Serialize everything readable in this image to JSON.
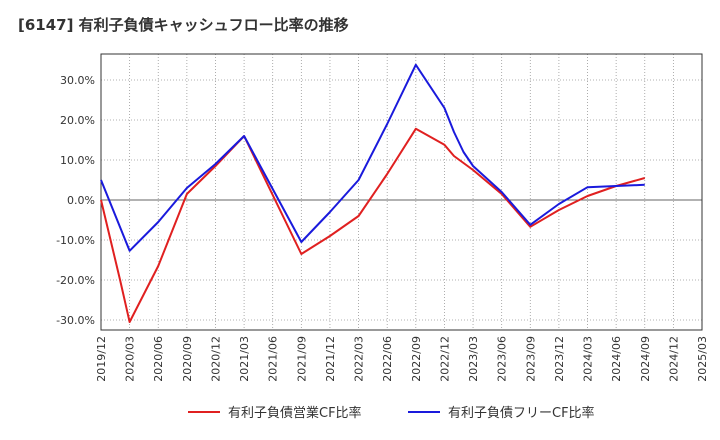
{
  "chart_data": {
    "type": "line",
    "title": "[6147]  有利子負債キャッシュフロー比率の推移",
    "xlabel": "",
    "ylabel": "",
    "x_ticks": [
      "2019/12",
      "2020/03",
      "2020/06",
      "2020/09",
      "2020/12",
      "2021/03",
      "2021/06",
      "2021/09",
      "2021/12",
      "2022/03",
      "2022/06",
      "2022/09",
      "2022/12",
      "2023/03",
      "2023/06",
      "2023/09",
      "2023/12",
      "2024/03",
      "2024/06",
      "2024/09",
      "2024/12",
      "2025/03"
    ],
    "y_ticks": [
      30,
      20,
      10,
      0,
      -10,
      -20,
      -30
    ],
    "y_tick_labels": [
      "30.0%",
      "20.0%",
      "10.0%",
      "0.0%",
      "-10.0%",
      "-20.0%",
      "-30.0%"
    ],
    "ylim": [
      -32.5,
      36.5
    ],
    "grid": true,
    "legend_position": "bottom",
    "series": [
      {
        "name": "有利子負債営業CF比率",
        "color": "#e02020",
        "points": [
          [
            "2019/12",
            0.0
          ],
          [
            "2020/01",
            -10.0
          ],
          [
            "2020/02",
            -20.0
          ],
          [
            "2020/03",
            -30.5
          ],
          [
            "2020/06",
            -16.5
          ],
          [
            "2020/09",
            1.5
          ],
          [
            "2020/12",
            8.5
          ],
          [
            "2021/03",
            16.0
          ],
          [
            "2021/09",
            -13.5
          ],
          [
            "2021/12",
            -9.0
          ],
          [
            "2022/03",
            -4.0
          ],
          [
            "2022/06",
            6.5
          ],
          [
            "2022/09",
            17.8
          ],
          [
            "2022/12",
            13.8
          ],
          [
            "2023/01",
            11.0
          ],
          [
            "2023/03",
            7.5
          ],
          [
            "2023/06",
            1.5
          ],
          [
            "2023/09",
            -6.7
          ],
          [
            "2023/12",
            -2.5
          ],
          [
            "2024/03",
            1.0
          ],
          [
            "2024/06",
            3.5
          ],
          [
            "2024/09",
            5.5
          ]
        ]
      },
      {
        "name": "有利子負債フリーCF比率",
        "color": "#1a1adc",
        "points": [
          [
            "2019/12",
            5.0
          ],
          [
            "2020/03",
            -12.7
          ],
          [
            "2020/06",
            -5.5
          ],
          [
            "2020/09",
            3.0
          ],
          [
            "2020/12",
            9.0
          ],
          [
            "2021/03",
            16.0
          ],
          [
            "2021/09",
            -10.5
          ],
          [
            "2021/12",
            -3.0
          ],
          [
            "2022/03",
            5.0
          ],
          [
            "2022/06",
            19.0
          ],
          [
            "2022/09",
            33.8
          ],
          [
            "2022/12",
            23.0
          ],
          [
            "2023/01",
            17.0
          ],
          [
            "2023/02",
            12.0
          ],
          [
            "2023/03",
            8.5
          ],
          [
            "2023/06",
            2.0
          ],
          [
            "2023/09",
            -6.2
          ],
          [
            "2023/12",
            -1.0
          ],
          [
            "2024/03",
            3.2
          ],
          [
            "2024/06",
            3.5
          ],
          [
            "2024/09",
            3.8
          ]
        ]
      }
    ]
  }
}
